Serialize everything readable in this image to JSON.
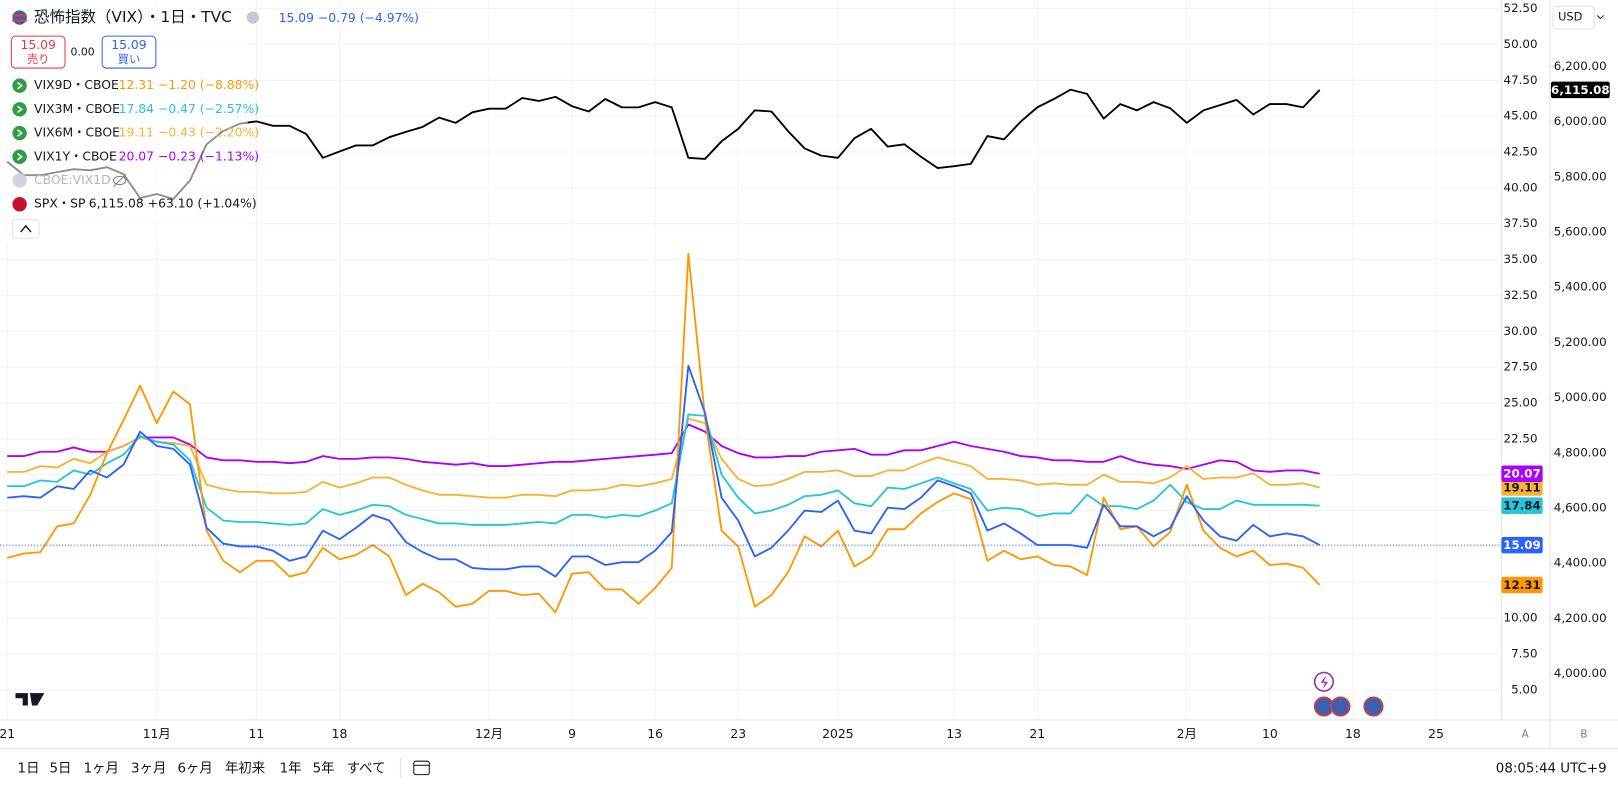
{
  "chart_data": {
    "type": "line",
    "categories": [
      "21",
      null,
      null,
      null,
      null,
      null,
      null,
      null,
      null,
      "11月",
      null,
      null,
      null,
      null,
      null,
      "11",
      null,
      null,
      null,
      null,
      "18",
      null,
      null,
      null,
      null,
      null,
      null,
      null,
      null,
      "12月",
      null,
      null,
      null,
      null,
      "9",
      null,
      null,
      null,
      null,
      "16",
      null,
      null,
      null,
      null,
      "23",
      null,
      null,
      null,
      null,
      null,
      "2025",
      null,
      null,
      null,
      null,
      null,
      null,
      "13",
      null,
      null,
      null,
      null,
      "21",
      null,
      null,
      null,
      null,
      null,
      null,
      null,
      null,
      "2月",
      null,
      null,
      null,
      null,
      "10",
      null,
      null,
      null,
      null,
      "18",
      null,
      null,
      null,
      null,
      "25"
    ],
    "series": [
      {
        "name": "恐怖指数（VIX）・1日・TVC",
        "quote": "15.09 −0.79 (−4.97%)",
        "color": "#2962ff",
        "label_color": "#ffffff",
        "last_label": "15.09",
        "values": [
          18.4,
          18.5,
          18.4,
          19.2,
          19.0,
          20.3,
          19.8,
          20.7,
          23.0,
          22.0,
          21.8,
          20.7,
          16.3,
          15.2,
          15.0,
          15.0,
          14.7,
          14.0,
          14.3,
          16.1,
          15.5,
          16.3,
          17.2,
          16.8,
          15.3,
          14.6,
          14.1,
          14.1,
          13.5,
          13.4,
          13.4,
          13.6,
          13.6,
          12.9,
          14.3,
          14.3,
          13.7,
          13.9,
          13.9,
          14.7,
          16.0,
          27.6,
          24.3,
          18.4,
          16.8,
          14.3,
          14.9,
          16.1,
          17.5,
          17.4,
          18.2,
          16.1,
          15.9,
          17.7,
          17.6,
          18.4,
          19.6,
          19.2,
          18.7,
          16.1,
          16.6,
          15.9,
          15.1,
          15.1,
          15.1,
          14.9,
          17.9,
          16.4,
          16.4,
          15.7,
          16.3,
          18.5,
          16.8,
          15.7,
          15.4,
          16.5,
          15.7,
          15.9,
          15.7,
          15.09,
          null,
          null,
          null,
          null,
          null,
          null,
          null
        ]
      },
      {
        "name": "VIX9D・CBOE",
        "quote": "12.31 −1.20 (−8.88%)",
        "color": "#ff9800",
        "label_color": "#131722",
        "last_label": "12.31",
        "values": [
          14.2,
          14.5,
          14.6,
          16.4,
          16.6,
          18.6,
          21.5,
          23.8,
          26.2,
          23.6,
          25.8,
          24.9,
          16.1,
          14.0,
          13.2,
          14.0,
          14.0,
          12.9,
          13.2,
          14.9,
          14.1,
          14.4,
          15.1,
          14.3,
          11.6,
          12.4,
          11.8,
          10.8,
          11.0,
          11.9,
          11.9,
          11.6,
          11.7,
          10.4,
          13.1,
          13.2,
          12.0,
          12.0,
          11.0,
          12.1,
          13.5,
          35.4,
          24.0,
          16.1,
          15.0,
          10.8,
          11.6,
          13.2,
          15.7,
          15.0,
          16.1,
          13.6,
          14.3,
          16.2,
          16.2,
          17.3,
          18.1,
          18.7,
          18.3,
          14.0,
          14.7,
          14.1,
          14.3,
          13.7,
          13.6,
          13.0,
          18.4,
          16.2,
          16.4,
          15.0,
          16.0,
          19.3,
          16.1,
          14.9,
          14.3,
          14.7,
          13.7,
          13.8,
          13.5,
          12.31,
          null,
          null,
          null,
          null,
          null,
          null,
          null
        ]
      },
      {
        "name": "VIX3M・CBOE",
        "quote": "17.84 −0.47 (−2.57%)",
        "color": "#26c6da",
        "label_color": "#131722",
        "last_label": "17.84",
        "values": [
          19.2,
          19.2,
          19.6,
          19.5,
          20.3,
          20.0,
          20.8,
          21.4,
          22.7,
          22.3,
          22.1,
          21.0,
          17.7,
          16.8,
          16.7,
          16.7,
          16.6,
          16.5,
          16.6,
          17.6,
          17.2,
          17.5,
          17.9,
          17.8,
          17.2,
          16.9,
          16.6,
          16.6,
          16.5,
          16.5,
          16.5,
          16.6,
          16.7,
          16.6,
          17.2,
          17.2,
          17.0,
          17.2,
          17.1,
          17.5,
          18.0,
          24.2,
          24.1,
          20.0,
          18.4,
          17.3,
          17.5,
          17.9,
          18.5,
          18.6,
          18.9,
          18.0,
          17.8,
          19.1,
          19.0,
          19.4,
          19.8,
          19.4,
          19.0,
          17.5,
          17.7,
          17.6,
          17.1,
          17.3,
          17.3,
          18.6,
          17.8,
          17.8,
          17.6,
          18.2,
          19.3,
          18.1,
          17.6,
          17.6,
          18.2,
          17.9,
          17.9,
          17.9,
          17.9,
          17.84,
          null,
          null,
          null,
          null,
          null,
          null,
          null
        ]
      },
      {
        "name": "VIX6M・CBOE",
        "quote": "19.11 −0.43 (−2.20%)",
        "color": "#f9b233",
        "label_color": "#131722",
        "last_label": "19.11",
        "values": [
          20.2,
          20.2,
          20.6,
          20.5,
          21.1,
          20.8,
          21.6,
          22.0,
          22.6,
          22.3,
          22.2,
          22.0,
          19.3,
          19.0,
          18.8,
          18.8,
          18.7,
          18.7,
          18.8,
          19.5,
          19.1,
          19.4,
          19.8,
          19.8,
          19.3,
          18.9,
          18.6,
          18.6,
          18.5,
          18.4,
          18.4,
          18.6,
          18.6,
          18.5,
          18.9,
          18.9,
          19.0,
          19.3,
          19.2,
          19.4,
          19.7,
          23.9,
          23.6,
          21.1,
          19.7,
          19.2,
          19.3,
          19.7,
          20.2,
          20.2,
          20.3,
          19.9,
          19.9,
          20.3,
          20.3,
          20.8,
          21.2,
          20.9,
          20.6,
          19.7,
          19.7,
          19.6,
          19.3,
          19.4,
          19.3,
          19.3,
          20.0,
          19.5,
          19.5,
          19.4,
          19.8,
          20.6,
          19.7,
          19.8,
          19.8,
          20.1,
          19.3,
          19.3,
          19.4,
          19.11,
          null,
          null,
          null,
          null,
          null,
          null,
          null
        ]
      },
      {
        "name": "VIX1Y・CBOE",
        "quote": "20.07 −0.23 (−1.13%)",
        "color": "#aa00ff",
        "label_color": "#ffffff",
        "last_label": "20.07",
        "values": [
          21.3,
          21.3,
          21.6,
          21.6,
          21.9,
          21.6,
          21.6,
          22.0,
          22.6,
          22.6,
          22.6,
          22.1,
          21.2,
          21.0,
          21.0,
          20.9,
          20.9,
          20.8,
          20.9,
          21.3,
          21.1,
          21.1,
          21.2,
          21.2,
          21.1,
          20.9,
          20.8,
          20.7,
          20.8,
          20.6,
          20.6,
          20.7,
          20.8,
          20.9,
          20.9,
          21.0,
          21.1,
          21.2,
          21.3,
          21.4,
          21.5,
          23.5,
          23.0,
          22.0,
          21.5,
          21.2,
          21.2,
          21.3,
          21.3,
          21.6,
          21.7,
          21.8,
          21.4,
          21.4,
          21.7,
          21.7,
          22.0,
          22.3,
          22.0,
          21.8,
          21.6,
          21.3,
          21.2,
          21.0,
          21.0,
          20.9,
          20.9,
          21.3,
          20.9,
          20.7,
          20.6,
          20.4,
          20.7,
          21.0,
          20.9,
          20.3,
          20.2,
          20.3,
          20.3,
          20.07,
          null,
          null,
          null,
          null,
          null,
          null,
          null
        ]
      },
      {
        "name": "SPX・SP",
        "quote": "6,115.08 +63.10 (+1.04%)",
        "color": "#000000",
        "label_color": "#ffffff",
        "last_label": "6,115.08",
        "axis": "y2",
        "values": [
          5855,
          5806,
          5806,
          5817,
          5828,
          5824,
          5835,
          5810,
          5723,
          5738,
          5720,
          5787,
          5918,
          5966,
          5993,
          6001,
          5985,
          5985,
          5955,
          5869,
          5892,
          5914,
          5914,
          5944,
          5963,
          5981,
          6015,
          5996,
          6034,
          6047,
          6047,
          6086,
          6075,
          6090,
          6056,
          6037,
          6082,
          6052,
          6052,
          6071,
          6052,
          5869,
          5865,
          5929,
          5974,
          6041,
          6037,
          5966,
          5903,
          5877,
          5869,
          5940,
          5974,
          5910,
          5918,
          5873,
          5832,
          5839,
          5847,
          5948,
          5936,
          6000,
          6052,
          6082,
          6116,
          6101,
          6011,
          6064,
          6041,
          6071,
          6049,
          5996,
          6041,
          6060,
          6079,
          6026,
          6064,
          6064,
          6052,
          6115.08,
          null,
          null,
          null,
          null,
          null,
          null,
          null
        ]
      }
    ],
    "ylim": [
      2.9,
      53.1
    ],
    "yticks": [
      {
        "value": 5,
        "label": "5.00"
      },
      {
        "value": 7.5,
        "label": "7.50"
      },
      {
        "value": 10,
        "label": "10.00"
      },
      {
        "value": 12.5,
        "label": "12.50"
      },
      {
        "value": 15,
        "label": "15.00"
      },
      {
        "value": 17.5,
        "label": "17.50"
      },
      {
        "value": 20,
        "label": "20.00"
      },
      {
        "value": 22.5,
        "label": "22.50"
      },
      {
        "value": 25,
        "label": "25.00"
      },
      {
        "value": 27.5,
        "label": "27.50"
      },
      {
        "value": 30,
        "label": "30.00"
      },
      {
        "value": 32.5,
        "label": "32.50"
      },
      {
        "value": 35,
        "label": "35.00"
      },
      {
        "value": 37.5,
        "label": "37.50"
      },
      {
        "value": 40,
        "label": "40.00"
      },
      {
        "value": 42.5,
        "label": "42.50"
      },
      {
        "value": 45,
        "label": "45.00"
      },
      {
        "value": 47.5,
        "label": "47.50"
      },
      {
        "value": 50,
        "label": "50.00"
      },
      {
        "value": 52.5,
        "label": "52.50"
      }
    ],
    "y2lim": [
      3832,
      6441
    ],
    "y2ticks": [
      {
        "value": 4000,
        "label": "4,000.00"
      },
      {
        "value": 4200,
        "label": "4,200.00"
      },
      {
        "value": 4400,
        "label": "4,400.00"
      },
      {
        "value": 4600,
        "label": "4,600.00"
      },
      {
        "value": 4800,
        "label": "4,800.00"
      },
      {
        "value": 5000,
        "label": "5,000.00"
      },
      {
        "value": 5200,
        "label": "5,200.00"
      },
      {
        "value": 5400,
        "label": "5,400.00"
      },
      {
        "value": 5600,
        "label": "5,600.00"
      },
      {
        "value": 5800,
        "label": "5,800.00"
      },
      {
        "value": 6000,
        "label": "6,000.00"
      },
      {
        "value": 6200,
        "label": "6,200.00"
      }
    ],
    "grid": true
  },
  "ui": {
    "currency": "USD",
    "sell_price": "15.09",
    "sell": "売り",
    "spread": "0.00",
    "buy_price": "15.09",
    "buy": "買い",
    "hidden_series": "CBOE:VIX1D",
    "scale_a": "A",
    "scale_b": "B",
    "ranges": [
      "1日",
      "5日",
      "1ヶ月",
      "3ヶ月",
      "6ヶ月",
      "年初来",
      "1年",
      "5年",
      "すべて"
    ],
    "clock": "08:05:44 UTC+9"
  }
}
